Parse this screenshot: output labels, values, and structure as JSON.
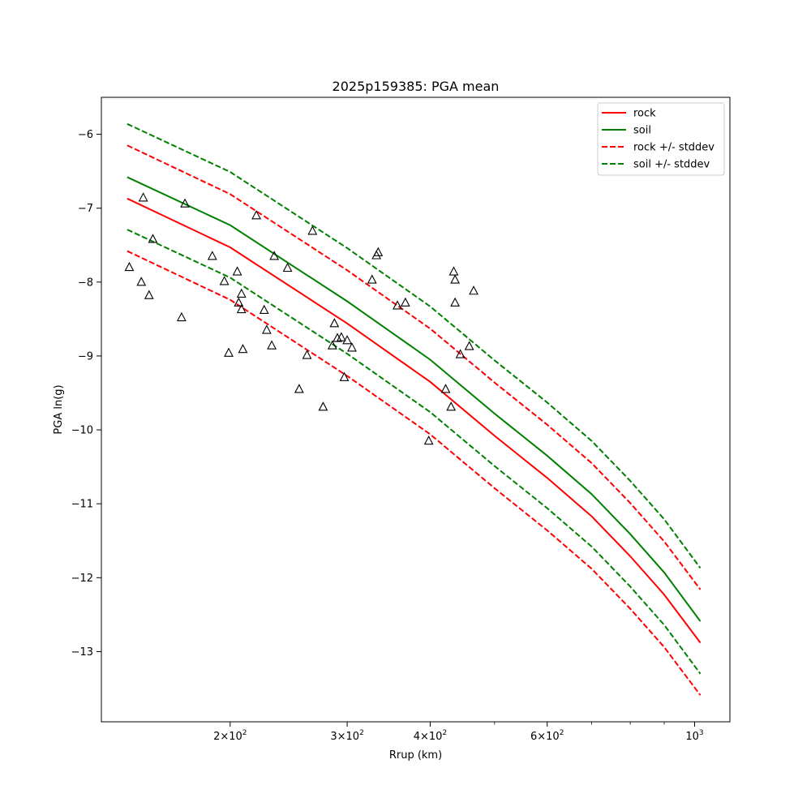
{
  "chart_data": {
    "type": "line",
    "title": "2025p159385: PGA mean",
    "xlabel": "Rrup (km)",
    "ylabel": "PGA ln(g)",
    "xscale": "log",
    "xlim": [
      128,
      1130
    ],
    "ylim": [
      -13.95,
      -5.5
    ],
    "grid": false,
    "legend_placement": "top-right",
    "x_ticks": [
      {
        "value": 200,
        "mantissa": "2",
        "exp": "2"
      },
      {
        "value": 300,
        "mantissa": "3",
        "exp": "2"
      },
      {
        "value": 400,
        "mantissa": "4",
        "exp": "2"
      },
      {
        "value": 600,
        "mantissa": "6",
        "exp": "2"
      },
      {
        "value": 1000,
        "mantissa": "",
        "exp": "3"
      }
    ],
    "x_minor_ticks": [
      500,
      700,
      800,
      900
    ],
    "y_ticks": [
      {
        "value": -6,
        "label": "−6"
      },
      {
        "value": -7,
        "label": "−7"
      },
      {
        "value": -8,
        "label": "−8"
      },
      {
        "value": -9,
        "label": "−9"
      },
      {
        "value": -10,
        "label": "−10"
      },
      {
        "value": -11,
        "label": "−11"
      },
      {
        "value": -12,
        "label": "−12"
      },
      {
        "value": -13,
        "label": "−13"
      }
    ],
    "series": [
      {
        "name": "rock",
        "color": "#ff0000",
        "dash": "solid",
        "x": [
          140,
          200,
          300,
          400,
          500,
          600,
          700,
          800,
          900,
          1020
        ],
        "y": [
          -6.87,
          -7.53,
          -8.56,
          -9.35,
          -10.08,
          -10.65,
          -11.17,
          -11.71,
          -12.23,
          -12.88
        ]
      },
      {
        "name": "soil",
        "color": "#008000",
        "dash": "solid",
        "x": [
          140,
          200,
          300,
          400,
          500,
          600,
          700,
          800,
          900,
          1020
        ],
        "y": [
          -6.58,
          -7.23,
          -8.26,
          -9.05,
          -9.78,
          -10.35,
          -10.87,
          -11.41,
          -11.93,
          -12.59
        ]
      },
      {
        "name": "rock +/- stddev",
        "color": "#ff0000",
        "dash": "dashed",
        "x": [
          140,
          200,
          300,
          400,
          500,
          600,
          700,
          800,
          900,
          1020
        ],
        "y": [
          -6.15,
          -6.81,
          -7.84,
          -8.63,
          -9.36,
          -9.93,
          -10.45,
          -10.99,
          -11.51,
          -12.16
        ]
      },
      {
        "name": "",
        "color": "#ff0000",
        "dash": "dashed",
        "x": [
          140,
          200,
          300,
          400,
          500,
          600,
          700,
          800,
          900,
          1020
        ],
        "y": [
          -7.58,
          -8.24,
          -9.27,
          -10.06,
          -10.79,
          -11.36,
          -11.88,
          -12.42,
          -12.94,
          -13.59
        ]
      },
      {
        "name": "soil +/- stddev",
        "color": "#008000",
        "dash": "dashed",
        "x": [
          140,
          200,
          300,
          400,
          500,
          600,
          700,
          800,
          900,
          1020
        ],
        "y": [
          -5.86,
          -6.51,
          -7.54,
          -8.33,
          -9.06,
          -9.63,
          -10.15,
          -10.69,
          -11.21,
          -11.87
        ]
      },
      {
        "name": "",
        "color": "#008000",
        "dash": "dashed",
        "x": [
          140,
          200,
          300,
          400,
          500,
          600,
          700,
          800,
          900,
          1020
        ],
        "y": [
          -7.29,
          -7.94,
          -8.97,
          -9.76,
          -10.49,
          -11.06,
          -11.58,
          -12.12,
          -12.64,
          -13.3
        ]
      }
    ],
    "observations": {
      "marker": "triangle",
      "x": [
        141,
        148,
        147,
        151,
        153,
        169,
        171,
        188,
        196,
        199,
        205,
        206,
        208,
        208,
        209,
        219,
        225,
        227,
        231,
        233,
        244,
        254,
        261,
        266,
        276,
        285,
        287,
        290,
        294,
        297,
        300,
        305,
        327,
        332,
        334,
        357,
        367,
        398,
        422,
        430,
        434,
        436,
        436,
        444,
        458,
        465
      ],
      "y": [
        -7.8,
        -6.86,
        -8.0,
        -8.18,
        -7.42,
        -8.48,
        -6.94,
        -7.65,
        -7.99,
        -8.96,
        -7.86,
        -8.28,
        -8.16,
        -8.37,
        -8.91,
        -7.1,
        -8.38,
        -8.65,
        -8.86,
        -7.65,
        -7.81,
        -9.45,
        -8.99,
        -7.31,
        -9.69,
        -8.86,
        -8.56,
        -8.76,
        -8.75,
        -9.29,
        -8.79,
        -8.89,
        -7.97,
        -7.64,
        -7.6,
        -8.32,
        -8.28,
        -10.15,
        -9.45,
        -9.69,
        -7.86,
        -7.97,
        -8.28,
        -8.98,
        -8.87,
        -8.12
      ]
    }
  }
}
